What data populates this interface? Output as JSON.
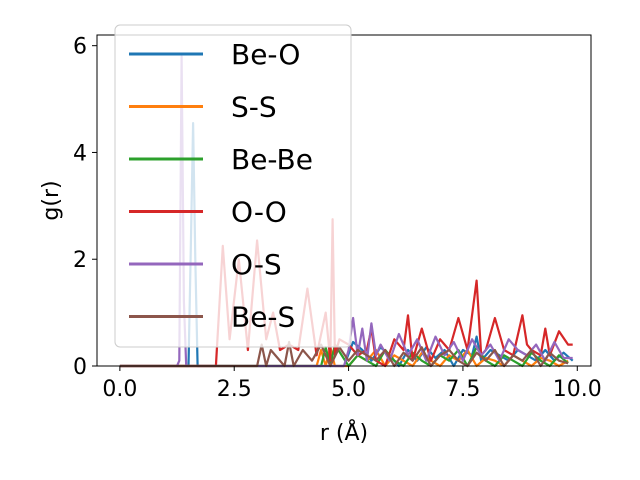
{
  "chart_data": {
    "type": "line",
    "title": "",
    "xlabel": "r (Å)",
    "ylabel": "g(r)",
    "xlim": [
      -0.5,
      10.3
    ],
    "ylim": [
      0,
      6.2
    ],
    "xticks": [
      0.0,
      2.5,
      5.0,
      7.5,
      10.0
    ],
    "xtick_labels": [
      "0.0",
      "2.5",
      "5.0",
      "7.5",
      "10.0"
    ],
    "yticks": [
      0,
      2,
      4,
      6
    ],
    "ytick_labels": [
      "0",
      "2",
      "4",
      "6"
    ],
    "grid": false,
    "legend_position": "upper-left",
    "series": [
      {
        "name": "Be-O",
        "color": "#1f77b4",
        "x": [
          0.0,
          1.4,
          1.5,
          1.55,
          1.6,
          1.65,
          1.7,
          1.8,
          4.9,
          5.1,
          5.3,
          5.5,
          5.7,
          5.9,
          6.1,
          6.3,
          6.5,
          6.7,
          6.9,
          7.1,
          7.3,
          7.5,
          7.7,
          7.8,
          7.9,
          8.1,
          8.3,
          8.5,
          8.7,
          8.9,
          9.1,
          9.3,
          9.5,
          9.7,
          9.9
        ],
        "y": [
          0,
          0,
          0,
          2.2,
          4.55,
          2.0,
          0,
          0,
          0,
          0.45,
          0.3,
          0.1,
          0.35,
          0.2,
          0.0,
          0.3,
          0.1,
          0.35,
          0.15,
          0.3,
          0.0,
          0.3,
          0.2,
          0.55,
          0.1,
          0.3,
          0.2,
          0.1,
          0.3,
          0.2,
          0.1,
          0.3,
          0.1,
          0.25,
          0.1
        ]
      },
      {
        "name": "S-S",
        "color": "#ff7f0e",
        "x": [
          0.0,
          4.3,
          4.4,
          4.5,
          4.6,
          4.7,
          5.0,
          5.2,
          5.4,
          5.6,
          5.8,
          6.0,
          6.2,
          6.4,
          6.6,
          6.8,
          7.0,
          7.2,
          7.4,
          7.6,
          7.8,
          8.0,
          8.2,
          8.4,
          8.6,
          8.8,
          9.0,
          9.2,
          9.4,
          9.6,
          9.8
        ],
        "y": [
          0,
          0,
          0.3,
          0.0,
          0.35,
          0,
          0,
          0.2,
          0.1,
          0.3,
          0.0,
          0.2,
          0.1,
          0.0,
          0.25,
          0.1,
          0.0,
          0.2,
          0.1,
          0.3,
          0.0,
          0.15,
          0.1,
          0.0,
          0.2,
          0.1,
          0.0,
          0.15,
          0.1,
          0.0,
          0.1
        ]
      },
      {
        "name": "Be-Be",
        "color": "#2ca02c",
        "x": [
          0.0,
          4.4,
          4.5,
          4.6,
          4.7,
          5.0,
          5.2,
          5.4,
          5.6,
          5.8,
          6.0,
          6.2,
          6.4,
          6.6,
          6.8,
          7.0,
          7.2,
          7.4,
          7.6,
          7.8,
          8.0,
          8.2,
          8.4,
          8.6,
          8.8,
          9.0,
          9.2,
          9.4,
          9.6,
          9.8
        ],
        "y": [
          0,
          0,
          0.35,
          0.0,
          0.4,
          0,
          0.2,
          0.1,
          0.0,
          0.3,
          0.1,
          0.0,
          0.25,
          0.1,
          0.0,
          0.2,
          0.1,
          0.3,
          0.0,
          0.35,
          0.1,
          0.0,
          0.2,
          0.1,
          0.0,
          0.25,
          0.1,
          0.0,
          0.2,
          0.05
        ]
      },
      {
        "name": "O-O",
        "color": "#d62728",
        "x": [
          0.0,
          2.1,
          2.25,
          2.4,
          2.6,
          2.8,
          3.0,
          3.2,
          3.35,
          3.5,
          3.7,
          3.9,
          4.1,
          4.3,
          4.5,
          4.6,
          4.65,
          4.7,
          4.8,
          5.0,
          5.2,
          5.4,
          5.5,
          5.6,
          5.8,
          6.0,
          6.2,
          6.3,
          6.4,
          6.6,
          6.8,
          7.0,
          7.2,
          7.4,
          7.6,
          7.8,
          7.9,
          8.0,
          8.2,
          8.4,
          8.6,
          8.8,
          8.9,
          9.0,
          9.2,
          9.3,
          9.4,
          9.6,
          9.8,
          9.9
        ],
        "y": [
          0,
          0,
          2.25,
          0.5,
          2.0,
          0.3,
          2.35,
          0.5,
          1.0,
          0.3,
          0.4,
          0.3,
          1.45,
          0.2,
          1.0,
          0.1,
          2.75,
          0.2,
          0.5,
          0.4,
          0.2,
          0.3,
          0.7,
          0.1,
          0.0,
          0.5,
          0.3,
          0.95,
          0.1,
          0.7,
          0.1,
          0.5,
          0.3,
          0.9,
          0.3,
          1.6,
          0.2,
          0.3,
          0.9,
          0.3,
          0.2,
          0.95,
          0.4,
          0.3,
          0.2,
          0.7,
          0.2,
          0.65,
          0.4,
          0.4
        ]
      },
      {
        "name": "O-S",
        "color": "#9467bd",
        "x": [
          0.0,
          1.25,
          1.3,
          1.35,
          1.4,
          1.45,
          1.5,
          1.6,
          4.9,
          5.0,
          5.1,
          5.2,
          5.3,
          5.4,
          5.5,
          5.6,
          5.7,
          5.9,
          6.1,
          6.3,
          6.5,
          6.7,
          6.9,
          7.1,
          7.3,
          7.5,
          7.7,
          7.9,
          8.1,
          8.3,
          8.5,
          8.7,
          8.9,
          9.1,
          9.3,
          9.5,
          9.7,
          9.9
        ],
        "y": [
          0,
          0,
          0.1,
          5.8,
          1.2,
          0,
          0,
          0,
          0,
          0.3,
          0.9,
          0.2,
          0.7,
          0.1,
          0.8,
          0.2,
          0.4,
          0.1,
          0.6,
          0.2,
          0.5,
          0.1,
          0.55,
          0.2,
          0.45,
          0.1,
          0.5,
          0.2,
          0.4,
          0.1,
          0.5,
          0.3,
          0.2,
          0.4,
          0.1,
          0.45,
          0.15,
          0.15
        ]
      },
      {
        "name": "Be-S",
        "color": "#8c564b",
        "x": [
          0.0,
          3.0,
          3.1,
          3.2,
          3.3,
          3.6,
          3.7,
          3.8,
          4.0,
          4.2,
          4.4,
          4.6,
          4.8,
          5.0,
          5.2,
          5.4,
          5.6,
          5.8,
          6.0,
          6.2,
          6.4,
          6.6,
          6.8,
          7.0,
          7.2,
          7.4,
          7.6,
          7.8,
          8.0,
          8.2,
          8.4,
          8.6,
          8.8,
          9.0,
          9.2,
          9.4,
          9.6,
          9.8
        ],
        "y": [
          0,
          0,
          0.4,
          0.0,
          0.3,
          0.0,
          0.45,
          0.0,
          0.3,
          0.1,
          0.4,
          0.0,
          0.35,
          0.1,
          0.3,
          0.2,
          0.1,
          0.3,
          0.0,
          0.25,
          0.1,
          0.35,
          0.0,
          0.2,
          0.3,
          0.1,
          0.0,
          0.25,
          0.1,
          0.3,
          0.0,
          0.2,
          0.1,
          0.3,
          0.0,
          0.25,
          0.1,
          0.05
        ]
      }
    ]
  }
}
